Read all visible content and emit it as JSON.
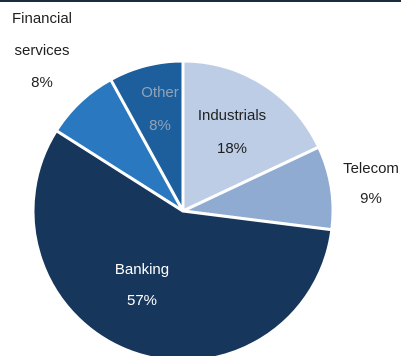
{
  "chart_data": {
    "type": "pie",
    "slices": [
      {
        "label": "Industrials",
        "value": 18,
        "label_text": "Industrials",
        "pct_text": "18%",
        "color": "#bdcde6",
        "text_color": "#1f1f1f",
        "label_pos": "inside"
      },
      {
        "label": "Telecom",
        "value": 9,
        "label_text": "Telecom",
        "pct_text": "9%",
        "color": "#8fabd2",
        "text_color": "#1f1f1f",
        "label_pos": "outside"
      },
      {
        "label": "Banking",
        "value": 57,
        "label_text": "Banking",
        "pct_text": "57%",
        "color": "#17365c",
        "text_color": "#ffffff",
        "label_pos": "inside"
      },
      {
        "label": "Financial services",
        "value": 8,
        "label_lines": [
          "Financial",
          "services"
        ],
        "pct_text": "8%",
        "color": "#2a78c0",
        "text_color": "#1f1f1f",
        "label_pos": "outside"
      },
      {
        "label": "Other",
        "value": 8,
        "label_text": "Other",
        "pct_text": "8%",
        "color": "#1d5f9d",
        "text_color": "#8fa3b8",
        "label_pos": "inside"
      }
    ],
    "start": "12 o'clock",
    "direction": "clockwise"
  }
}
